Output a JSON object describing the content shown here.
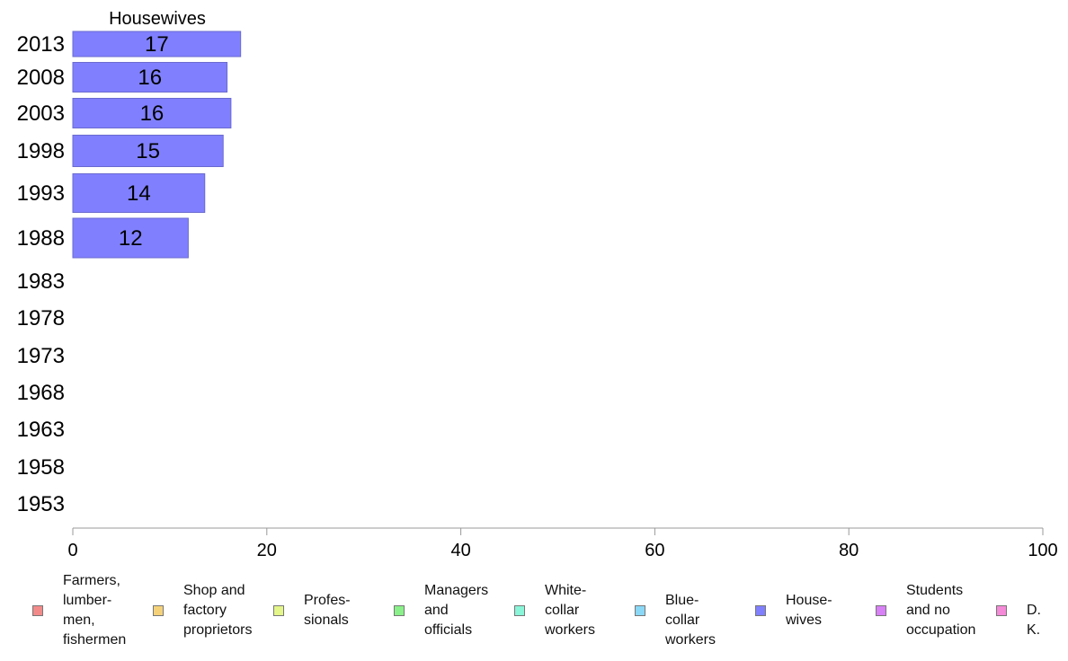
{
  "chart_data": {
    "type": "bar",
    "orientation": "horizontal",
    "title": "Housewives",
    "categories": [
      "2013",
      "2008",
      "2003",
      "1998",
      "1993",
      "1988",
      "1983",
      "1978",
      "1973",
      "1968",
      "1963",
      "1958",
      "1953"
    ],
    "series": [
      {
        "name": "Housewives",
        "values": [
          17.3,
          15.9,
          16.3,
          15.5,
          13.6,
          11.9,
          null,
          null,
          null,
          null,
          null,
          null,
          null
        ],
        "color": "#8080ff"
      }
    ],
    "data_labels": [
      "17",
      "16",
      "16",
      "15",
      "14",
      "12",
      "",
      "",
      "",
      "",
      "",
      "",
      ""
    ],
    "xlim": [
      0,
      100
    ],
    "xticks": [
      "0",
      "20",
      "40",
      "60",
      "80",
      "100"
    ],
    "grid": false,
    "legend_position": "bottom",
    "legend": [
      {
        "label": "Farmers,\nlumber-\nmen,\nfishermen",
        "color": "#f28a8a"
      },
      {
        "label": "Shop and\nfactory\nproprietors",
        "color": "#f5d27a"
      },
      {
        "label": "Profes-\nsionals",
        "color": "#e4f58a"
      },
      {
        "label": "Managers\nand\nofficials",
        "color": "#8af08a"
      },
      {
        "label": "White-\ncollar\nworkers",
        "color": "#8af5d8"
      },
      {
        "label": "Blue-collar\nworkers",
        "color": "#8ad8f5"
      },
      {
        "label": "House-\nwives",
        "color": "#8080ff"
      },
      {
        "label": "Students\nand no\noccupation",
        "color": "#d880f5"
      },
      {
        "label": "D. K.",
        "color": "#f58ad8"
      }
    ]
  }
}
